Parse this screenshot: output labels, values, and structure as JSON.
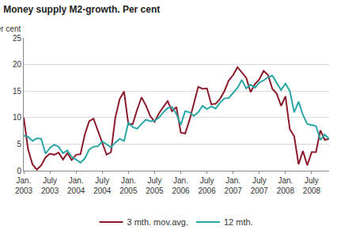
{
  "chart_data": {
    "type": "line",
    "title": "Money supply M2-growth. Per cent",
    "y_label": "Per cent",
    "categories": [
      "Jan. 2003",
      null,
      null,
      null,
      null,
      null,
      "July 2003",
      null,
      null,
      null,
      null,
      null,
      "Jan. 2004",
      null,
      null,
      null,
      null,
      null,
      "July 2004",
      null,
      null,
      null,
      null,
      null,
      "Jan. 2005",
      null,
      null,
      null,
      null,
      null,
      "July 2005",
      null,
      null,
      null,
      null,
      null,
      "Jan. 2006",
      null,
      null,
      null,
      null,
      null,
      "July 2006",
      null,
      null,
      null,
      null,
      null,
      "Jan. 2007",
      null,
      null,
      null,
      null,
      null,
      "July 2007",
      null,
      null,
      null,
      null,
      null,
      "Jan. 2008",
      null,
      null,
      null,
      null,
      null,
      "July 2008",
      null,
      null,
      null,
      null
    ],
    "series": [
      {
        "name": "3 mth. mov.avg.",
        "color": "#8b1a2b",
        "values": [
          10.0,
          4.0,
          1.2,
          0.2,
          1.0,
          2.5,
          3.2,
          3.0,
          3.4,
          2.1,
          3.3,
          2.0,
          3.0,
          3.1,
          6.8,
          9.3,
          9.8,
          7.5,
          5.0,
          3.0,
          3.5,
          10.0,
          13.5,
          14.9,
          8.7,
          8.8,
          11.5,
          13.8,
          12.3,
          10.3,
          9.2,
          10.8,
          12.0,
          13.1,
          11.2,
          12.0,
          7.2,
          7.0,
          9.5,
          12.5,
          15.8,
          15.4,
          15.5,
          12.5,
          12.6,
          13.5,
          15.0,
          17.0,
          18.0,
          19.5,
          18.5,
          17.5,
          14.8,
          16.3,
          17.2,
          18.8,
          18.0,
          15.4,
          14.5,
          12.2,
          14.0,
          7.8,
          6.5,
          1.2,
          3.7,
          1.0,
          3.5,
          3.5,
          7.6,
          5.8,
          6.0
        ]
      },
      {
        "name": "12 mth.",
        "color": "#2aa5a5",
        "values": [
          6.6,
          6.4,
          5.6,
          6.1,
          6.0,
          3.2,
          4.3,
          4.9,
          4.5,
          3.3,
          3.8,
          2.6,
          2.1,
          1.5,
          2.3,
          4.0,
          4.5,
          4.6,
          5.5,
          5.0,
          4.4,
          5.3,
          6.0,
          5.6,
          9.1,
          8.2,
          7.9,
          8.8,
          9.6,
          9.3,
          9.4,
          10.0,
          11.0,
          11.8,
          12.0,
          10.7,
          8.6,
          11.2,
          11.0,
          10.3,
          11.0,
          12.2,
          11.6,
          12.1,
          11.7,
          12.8,
          13.6,
          13.7,
          14.6,
          15.6,
          17.1,
          15.5,
          16.2,
          15.6,
          16.6,
          17.0,
          17.6,
          17.9,
          16.5,
          15.2,
          16.4,
          15.0,
          11.0,
          13.0,
          10.5,
          8.8,
          8.6,
          8.4,
          5.8,
          6.8,
          6.0
        ]
      }
    ],
    "ylim": [
      0,
      25
    ],
    "yticks": [
      0,
      5,
      10,
      15,
      20,
      25
    ],
    "grid": true,
    "legend": "bottom"
  }
}
